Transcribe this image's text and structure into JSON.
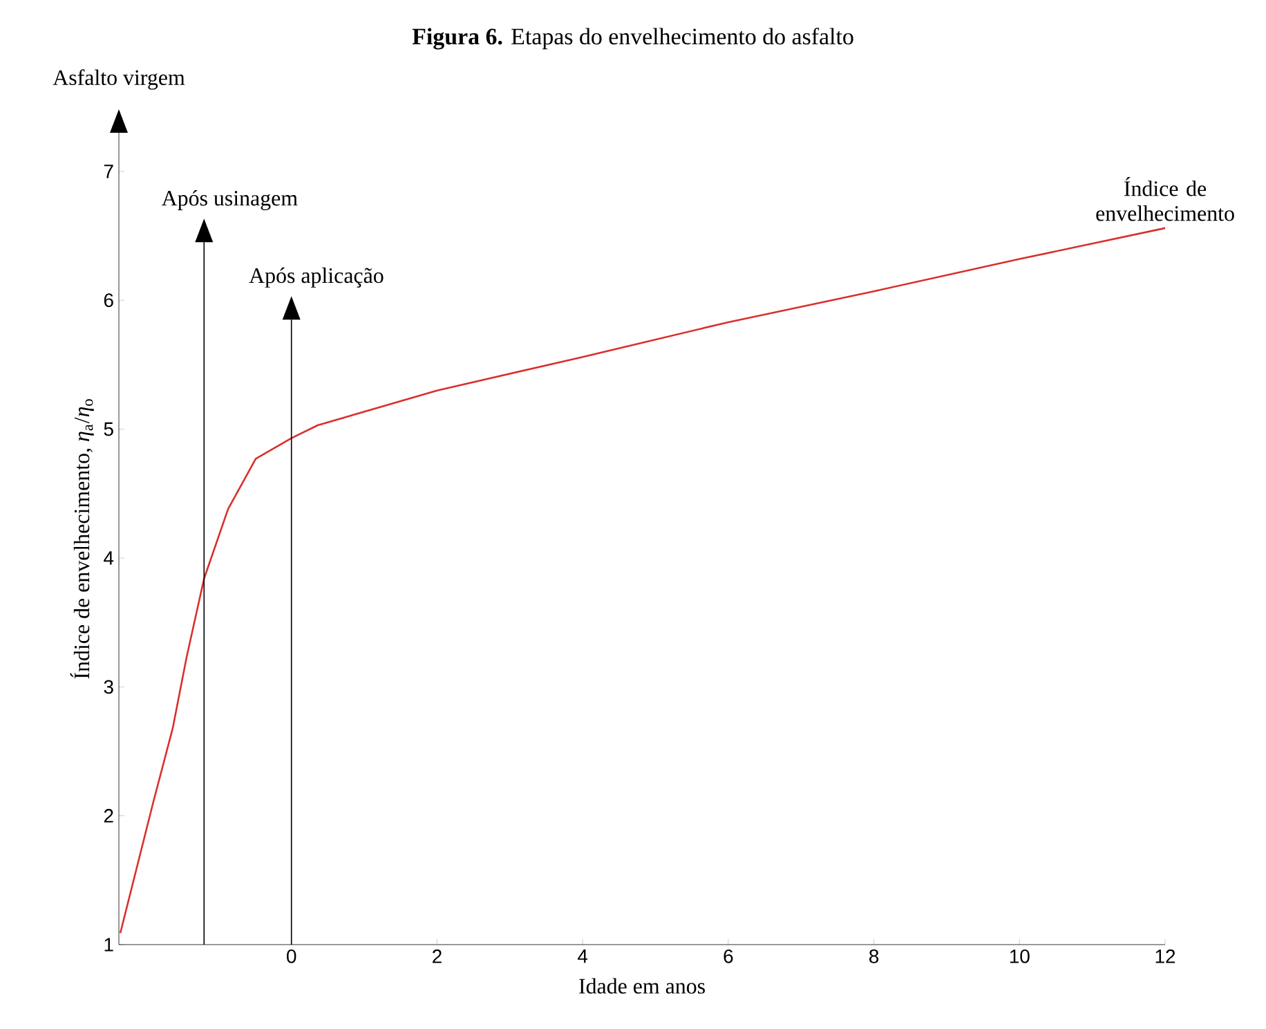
{
  "chart_data": {
    "type": "line",
    "title": "**Figura 6.** Etapas do envelhecimento do asfalto",
    "xlabel": "Idade em anos",
    "ylabel": "Índice de envelhecimento, *η*$_{a}$/*η*$_{o}$",
    "x": [
      -2.35,
      -1.9,
      -1.63,
      -1.44,
      -1.2,
      -0.87,
      -0.49,
      0,
      0.36,
      2,
      4,
      6,
      8,
      10,
      12
    ],
    "series": [
      {
        "color": "#d9302c",
        "values": [
          1.09,
          2.1,
          2.68,
          3.23,
          3.84,
          4.38,
          4.77,
          4.93,
          5.03,
          5.3,
          5.56,
          5.83,
          6.07,
          6.32,
          6.56
        ]
      }
    ],
    "xlim": [
      -2.37,
      12
    ],
    "ylim": [
      1,
      7.3
    ],
    "xticks": [
      0,
      2,
      4,
      6,
      8,
      10,
      12
    ],
    "yticks": [
      1,
      2,
      3,
      4,
      5,
      6,
      7
    ],
    "ref_lines": [
      {
        "axis": "x",
        "value": -1.2,
        "label": "Após usinagem",
        "color": "#000000"
      },
      {
        "axis": "x",
        "value": 0,
        "label": "Após aplicação",
        "color": "#000000"
      }
    ],
    "annotations": [
      "Asfalto virgem",
      {
        "text": "Índice de envelhecimento",
        "x": 12,
        "y": 6.56
      }
    ]
  }
}
